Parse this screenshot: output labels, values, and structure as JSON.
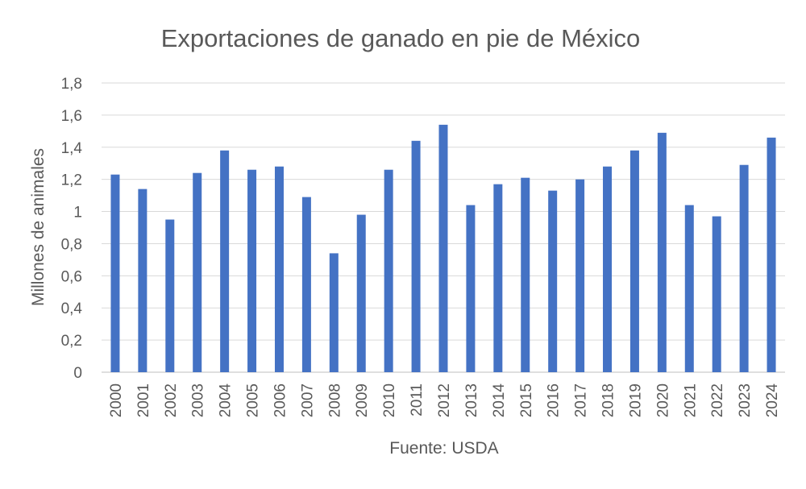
{
  "chart_data": {
    "type": "bar",
    "title": "Exportaciones de ganado en pie de México",
    "xlabel": "Fuente: USDA",
    "ylabel": "Millones de animales",
    "ylim": [
      0,
      1.8
    ],
    "yticks": [
      "0",
      "0,2",
      "0,4",
      "0,6",
      "0,8",
      "1",
      "1,2",
      "1,4",
      "1,6",
      "1,8"
    ],
    "grid": true,
    "color": "#4472C4",
    "categories": [
      "2000",
      "2001",
      "2002",
      "2003",
      "2004",
      "2005",
      "2006",
      "2007",
      "2008",
      "2009",
      "2010",
      "2011",
      "2012",
      "2013",
      "2014",
      "2015",
      "2016",
      "2017",
      "2018",
      "2019",
      "2020",
      "2021",
      "2022",
      "2023",
      "2024"
    ],
    "values": [
      1.23,
      1.14,
      0.95,
      1.24,
      1.38,
      1.26,
      1.28,
      1.09,
      0.74,
      0.98,
      1.26,
      1.44,
      1.54,
      1.04,
      1.17,
      1.21,
      1.13,
      1.2,
      1.28,
      1.38,
      1.49,
      1.04,
      0.97,
      1.29,
      1.46
    ]
  }
}
